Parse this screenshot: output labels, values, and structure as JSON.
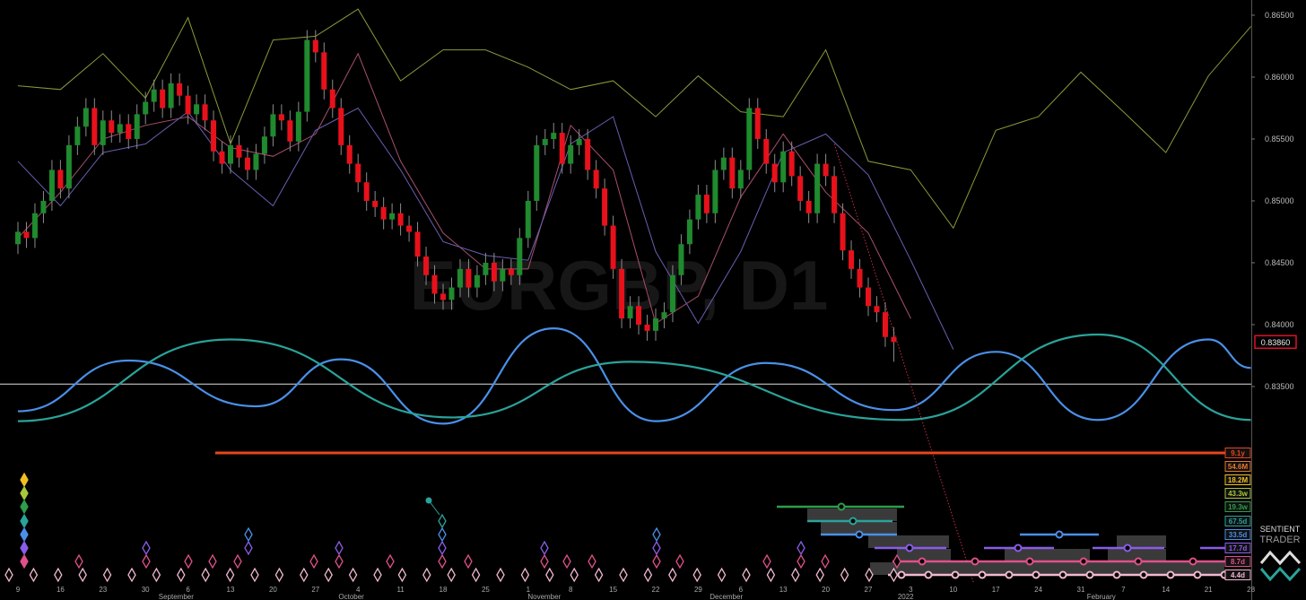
{
  "chart_data": {
    "type": "candlestick",
    "watermark": "EURGBP, D1",
    "x_tick_labels": [
      "9",
      "16",
      "23",
      "30",
      "6",
      "13",
      "20",
      "27",
      "4",
      "11",
      "18",
      "25",
      "1",
      "8",
      "15",
      "22",
      "29",
      "6",
      "13",
      "20",
      "27",
      "3",
      "10",
      "17",
      "24",
      "31",
      "7",
      "14",
      "21",
      "28"
    ],
    "month_labels": [
      "September",
      "October",
      "November",
      "December",
      "2022",
      "February"
    ],
    "open": [
      0.8465,
      0.8475,
      0.847,
      0.849,
      0.85,
      0.8525,
      0.851,
      0.8545,
      0.856,
      0.8575,
      0.8545,
      0.8565,
      0.8555,
      0.8562,
      0.855,
      0.857,
      0.858,
      0.859,
      0.8575,
      0.8595,
      0.8585,
      0.857,
      0.8578,
      0.8565,
      0.854,
      0.853,
      0.8545,
      0.8535,
      0.8525,
      0.8538,
      0.8552,
      0.857,
      0.8565,
      0.8548,
      0.8572,
      0.863,
      0.862,
      0.859,
      0.8575,
      0.8545,
      0.853,
      0.8515,
      0.85,
      0.8495,
      0.8485,
      0.849,
      0.848,
      0.8475,
      0.8455,
      0.844,
      0.8425,
      0.842,
      0.843,
      0.8445,
      0.843,
      0.844,
      0.845,
      0.8435,
      0.8445,
      0.844,
      0.847,
      0.85,
      0.8545,
      0.855,
      0.8555,
      0.853,
      0.8545,
      0.855,
      0.8525,
      0.851,
      0.848,
      0.8445,
      0.8405,
      0.8415,
      0.84,
      0.8395,
      0.8405,
      0.841,
      0.844,
      0.8465,
      0.8485,
      0.8505,
      0.849,
      0.8525,
      0.8535,
      0.851,
      0.8525,
      0.8575,
      0.855,
      0.853,
      0.8515,
      0.854,
      0.852,
      0.85,
      0.849,
      0.853,
      0.852,
      0.849,
      0.846,
      0.8445,
      0.843,
      0.8415,
      0.841,
      0.839
    ],
    "high": [
      0.8483,
      0.8483,
      0.8498,
      0.8508,
      0.8533,
      0.8533,
      0.8553,
      0.8568,
      0.8583,
      0.8583,
      0.8573,
      0.8573,
      0.857,
      0.857,
      0.8578,
      0.8588,
      0.8598,
      0.8598,
      0.8603,
      0.8603,
      0.8593,
      0.8586,
      0.8586,
      0.8573,
      0.8548,
      0.8553,
      0.8553,
      0.8543,
      0.8546,
      0.856,
      0.8578,
      0.8578,
      0.8573,
      0.858,
      0.8638,
      0.8638,
      0.8628,
      0.8598,
      0.8583,
      0.8553,
      0.8538,
      0.8523,
      0.8508,
      0.8503,
      0.8498,
      0.8498,
      0.8488,
      0.8483,
      0.8463,
      0.8448,
      0.8433,
      0.8438,
      0.8453,
      0.8453,
      0.8448,
      0.8458,
      0.8458,
      0.8453,
      0.8453,
      0.8478,
      0.8508,
      0.8553,
      0.8558,
      0.8563,
      0.8563,
      0.8553,
      0.8558,
      0.8558,
      0.8533,
      0.8518,
      0.8488,
      0.8453,
      0.8423,
      0.8423,
      0.8408,
      0.8413,
      0.8418,
      0.8448,
      0.8473,
      0.8493,
      0.8513,
      0.8513,
      0.8533,
      0.8543,
      0.8543,
      0.8533,
      0.8583,
      0.8583,
      0.8558,
      0.8538,
      0.8548,
      0.8548,
      0.8528,
      0.8508,
      0.8538,
      0.8538,
      0.8528,
      0.8498,
      0.8468,
      0.8453,
      0.8438,
      0.8423,
      0.8418,
      0.8398
    ],
    "low": [
      0.8457,
      0.8462,
      0.8462,
      0.8482,
      0.8492,
      0.8502,
      0.8502,
      0.8537,
      0.8552,
      0.8537,
      0.8537,
      0.8547,
      0.8547,
      0.8542,
      0.8542,
      0.8562,
      0.8572,
      0.8567,
      0.8567,
      0.8577,
      0.8562,
      0.8562,
      0.8557,
      0.8532,
      0.8522,
      0.8522,
      0.8527,
      0.8517,
      0.8517,
      0.853,
      0.8544,
      0.8557,
      0.854,
      0.854,
      0.8564,
      0.8612,
      0.8582,
      0.8567,
      0.8537,
      0.8522,
      0.8507,
      0.8492,
      0.8487,
      0.8477,
      0.8477,
      0.8472,
      0.8467,
      0.8447,
      0.8432,
      0.8417,
      0.8412,
      0.8412,
      0.8422,
      0.8422,
      0.8422,
      0.8432,
      0.8427,
      0.8427,
      0.8432,
      0.8432,
      0.8462,
      0.8492,
      0.8537,
      0.8542,
      0.8522,
      0.8522,
      0.8537,
      0.8517,
      0.8502,
      0.8472,
      0.8437,
      0.8397,
      0.8397,
      0.8392,
      0.8387,
      0.8387,
      0.8397,
      0.8402,
      0.8432,
      0.8457,
      0.8477,
      0.8482,
      0.8482,
      0.8517,
      0.8502,
      0.8502,
      0.8517,
      0.8542,
      0.8522,
      0.8507,
      0.8507,
      0.8512,
      0.8492,
      0.8482,
      0.8482,
      0.8512,
      0.8482,
      0.8452,
      0.8437,
      0.8422,
      0.8407,
      0.8402,
      0.8382,
      0.837
    ],
    "close": [
      0.8475,
      0.847,
      0.849,
      0.85,
      0.8525,
      0.851,
      0.8545,
      0.856,
      0.8575,
      0.8545,
      0.8565,
      0.8555,
      0.8562,
      0.855,
      0.857,
      0.858,
      0.859,
      0.8575,
      0.8595,
      0.8585,
      0.857,
      0.8578,
      0.8565,
      0.854,
      0.853,
      0.8545,
      0.8535,
      0.8525,
      0.8538,
      0.8552,
      0.857,
      0.8565,
      0.8548,
      0.8572,
      0.863,
      0.862,
      0.859,
      0.8575,
      0.8545,
      0.853,
      0.8515,
      0.85,
      0.8495,
      0.8485,
      0.849,
      0.848,
      0.8475,
      0.8455,
      0.844,
      0.8425,
      0.842,
      0.843,
      0.8445,
      0.843,
      0.844,
      0.845,
      0.8435,
      0.8445,
      0.844,
      0.847,
      0.85,
      0.8545,
      0.855,
      0.8555,
      0.853,
      0.8545,
      0.855,
      0.8525,
      0.851,
      0.848,
      0.8445,
      0.8405,
      0.8415,
      0.84,
      0.8395,
      0.8405,
      0.841,
      0.844,
      0.8465,
      0.8485,
      0.8505,
      0.849,
      0.8525,
      0.8535,
      0.851,
      0.8525,
      0.8575,
      0.855,
      0.853,
      0.8515,
      0.854,
      0.852,
      0.85,
      0.849,
      0.853,
      0.852,
      0.849,
      0.846,
      0.8445,
      0.843,
      0.8415,
      0.841,
      0.839,
      0.8386
    ],
    "up_color": "#1f8a2e",
    "down_color": "#e8111b",
    "lines": [
      {
        "color": "#8a9a38",
        "values": [
          0.8593,
          0.859,
          0.8619,
          0.8583,
          0.8648,
          0.8546,
          0.863,
          0.8633,
          0.8655,
          0.8597,
          0.8622,
          0.8622,
          0.8608,
          0.859,
          0.8597,
          0.8568,
          0.8601,
          0.8572,
          0.8568,
          0.8622,
          0.8532,
          0.8525,
          0.8478,
          0.8557,
          0.8568,
          0.8604,
          0.8572,
          0.8539,
          0.8601,
          0.8641
        ]
      },
      {
        "color": "#a8506e",
        "values": [
          0.847,
          0.8507,
          0.855,
          0.8561,
          0.8568,
          0.8543,
          0.8536,
          0.8554,
          0.8619,
          0.8532,
          0.8474,
          0.8445,
          0.8445,
          0.8561,
          0.8525,
          0.8401,
          0.8423,
          0.8503,
          0.8554,
          0.8507,
          0.8474,
          0.8405
        ]
      },
      {
        "color": "#6a5fb0",
        "values": [
          0.8532,
          0.8496,
          0.8539,
          0.8546,
          0.8572,
          0.8525,
          0.8496,
          0.8557,
          0.8575,
          0.8525,
          0.8467,
          0.8456,
          0.8452,
          0.8546,
          0.8568,
          0.8459,
          0.8401,
          0.8459,
          0.8539,
          0.8554,
          0.8521,
          0.8452,
          0.838
        ]
      }
    ],
    "waves": [
      {
        "color": "#4a90e8",
        "x": [
          0,
          13,
          28,
          38,
          50,
          63,
          75,
          88,
          103,
          115,
          127,
          140,
          145
        ],
        "values": [
          0.833,
          0.8371,
          0.8334,
          0.8372,
          0.832,
          0.8397,
          0.8322,
          0.8369,
          0.8331,
          0.8378,
          0.8323,
          0.8388,
          0.8365
        ]
      },
      {
        "color": "#2aa39a",
        "x": [
          0,
          25,
          51,
          72,
          104,
          127,
          145
        ],
        "values": [
          0.8322,
          0.8388,
          0.8325,
          0.837,
          0.8323,
          0.8392,
          0.8323
        ]
      }
    ],
    "reference_line": 0.8352,
    "projection": {
      "color": "#c03040",
      "x": [
        96,
        113
      ],
      "values": [
        0.8546,
        0.8178
      ]
    },
    "ylim": [
      0.81775,
      0.86623
    ],
    "yticks": [
      {
        "value": 0.865,
        "label": "0.86500"
      },
      {
        "value": 0.86,
        "label": "0.86000"
      },
      {
        "value": 0.855,
        "label": "0.85500"
      },
      {
        "value": 0.85,
        "label": "0.85000"
      },
      {
        "value": 0.845,
        "label": "0.84500"
      },
      {
        "value": 0.84,
        "label": "0.84000"
      },
      {
        "value": 0.835,
        "label": "0.83500"
      }
    ],
    "last_price": {
      "value": 0.8386,
      "label": "0.83860"
    },
    "cycles": [
      {
        "label": "9.1y",
        "color": "#e8451c"
      },
      {
        "label": "54.6M",
        "color": "#e8782a"
      },
      {
        "label": "18.2M",
        "color": "#f0c020"
      },
      {
        "label": "43.3w",
        "color": "#a8c83c"
      },
      {
        "label": "19.3w",
        "color": "#2e9e4a"
      },
      {
        "label": "67.5d",
        "color": "#2aa39a"
      },
      {
        "label": "33.5d",
        "color": "#4a90e8"
      },
      {
        "label": "17.7d",
        "color": "#8a5ce8"
      },
      {
        "label": "8.7d",
        "color": "#e0508a"
      },
      {
        "label": "4.4d",
        "color": "#f0b8d0"
      }
    ]
  },
  "logo": {
    "line1": "SENTIENT",
    "line2": "TRADER"
  }
}
